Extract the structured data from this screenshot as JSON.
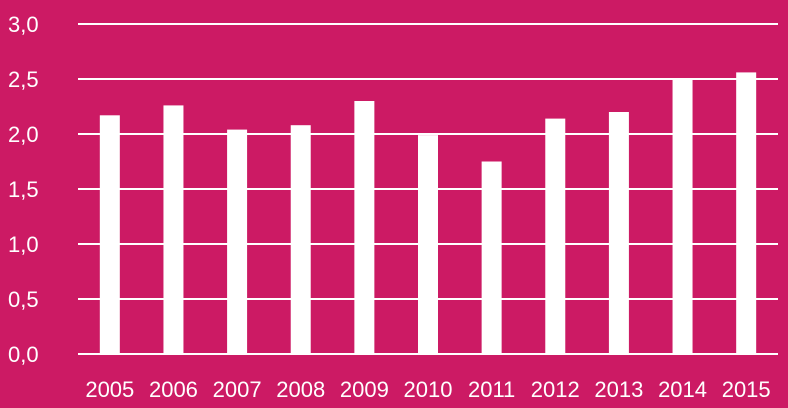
{
  "colors": {
    "background": "#CC1A64",
    "bars": "#FFFFFF",
    "gridlines": "#FFFFFF",
    "text": "#FFFFFF"
  },
  "chart_data": {
    "type": "bar",
    "title": "",
    "xlabel": "",
    "ylabel": "",
    "categories": [
      "2005",
      "2006",
      "2007",
      "2008",
      "2009",
      "2010",
      "2011",
      "2012",
      "2013",
      "2014",
      "2015"
    ],
    "values": [
      2.17,
      2.26,
      2.04,
      2.08,
      2.3,
      1.99,
      1.75,
      2.14,
      2.2,
      2.5,
      2.56
    ],
    "ylim": [
      0,
      3.0
    ],
    "yticks": [
      "0,0",
      "0,5",
      "1,0",
      "1,5",
      "2,0",
      "2,5",
      "3,0"
    ],
    "grid": true,
    "legend": "none"
  }
}
